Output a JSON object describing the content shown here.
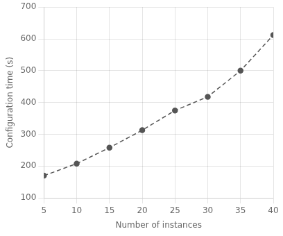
{
  "chart_data": {
    "type": "line",
    "x": [
      5,
      10,
      15,
      20,
      25,
      30,
      35,
      40
    ],
    "values": [
      170,
      208,
      258,
      313,
      375,
      418,
      500,
      612
    ],
    "xlabel": "Number of instances",
    "ylabel": "Configuration time (s)",
    "xlim": [
      5,
      40
    ],
    "ylim": [
      100,
      700
    ],
    "xticks": [
      5,
      10,
      15,
      20,
      25,
      30,
      35,
      40
    ],
    "yticks": [
      100,
      200,
      300,
      400,
      500,
      600,
      700
    ],
    "color": "#555555",
    "line_style": "dashed",
    "marker": "circle",
    "grid": true
  }
}
